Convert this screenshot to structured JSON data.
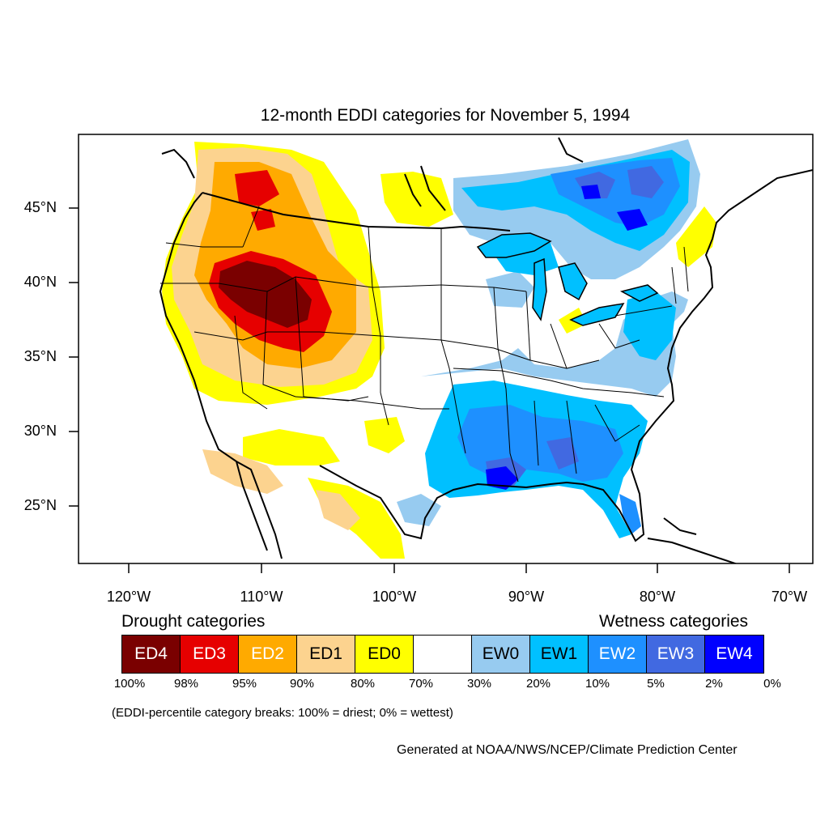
{
  "title": "12-month EDDI categories for November 5, 1994",
  "lon_ticks": [
    "120°W",
    "110°W",
    "100°W",
    "90°W",
    "80°W",
    "70°W"
  ],
  "lat_ticks": [
    "45°N",
    "40°N",
    "35°N",
    "30°N",
    "25°N"
  ],
  "legend": {
    "drought_heading": "Drought categories",
    "wetness_heading": "Wetness categories",
    "categories": [
      {
        "label": "ED4",
        "color": "#7a0000",
        "text_color": "#ffffff"
      },
      {
        "label": "ED3",
        "color": "#e60000",
        "text_color": "#ffffff"
      },
      {
        "label": "ED2",
        "color": "#ffaa00",
        "text_color": "#ffffff"
      },
      {
        "label": "ED1",
        "color": "#fcd38f",
        "text_color": "#000000"
      },
      {
        "label": "ED0",
        "color": "#ffff00",
        "text_color": "#000000"
      },
      {
        "label": "",
        "color": "#ffffff",
        "text_color": "#000000"
      },
      {
        "label": "EW0",
        "color": "#97cbf0",
        "text_color": "#000000"
      },
      {
        "label": "EW1",
        "color": "#00c0ff",
        "text_color": "#000000"
      },
      {
        "label": "EW2",
        "color": "#1e90ff",
        "text_color": "#ffffff"
      },
      {
        "label": "EW3",
        "color": "#4169e1",
        "text_color": "#ffffff"
      },
      {
        "label": "EW4",
        "color": "#0000ff",
        "text_color": "#ffffff"
      }
    ],
    "percentiles": [
      "100%",
      "98%",
      "95%",
      "90%",
      "80%",
      "70%",
      "30%",
      "20%",
      "10%",
      "5%",
      "2%",
      "0%"
    ]
  },
  "note": "(EDDI-percentile category breaks: 100% = driest; 0% = wettest)",
  "credit": "Generated at NOAA/NWS/NCEP/Climate Prediction Center"
}
